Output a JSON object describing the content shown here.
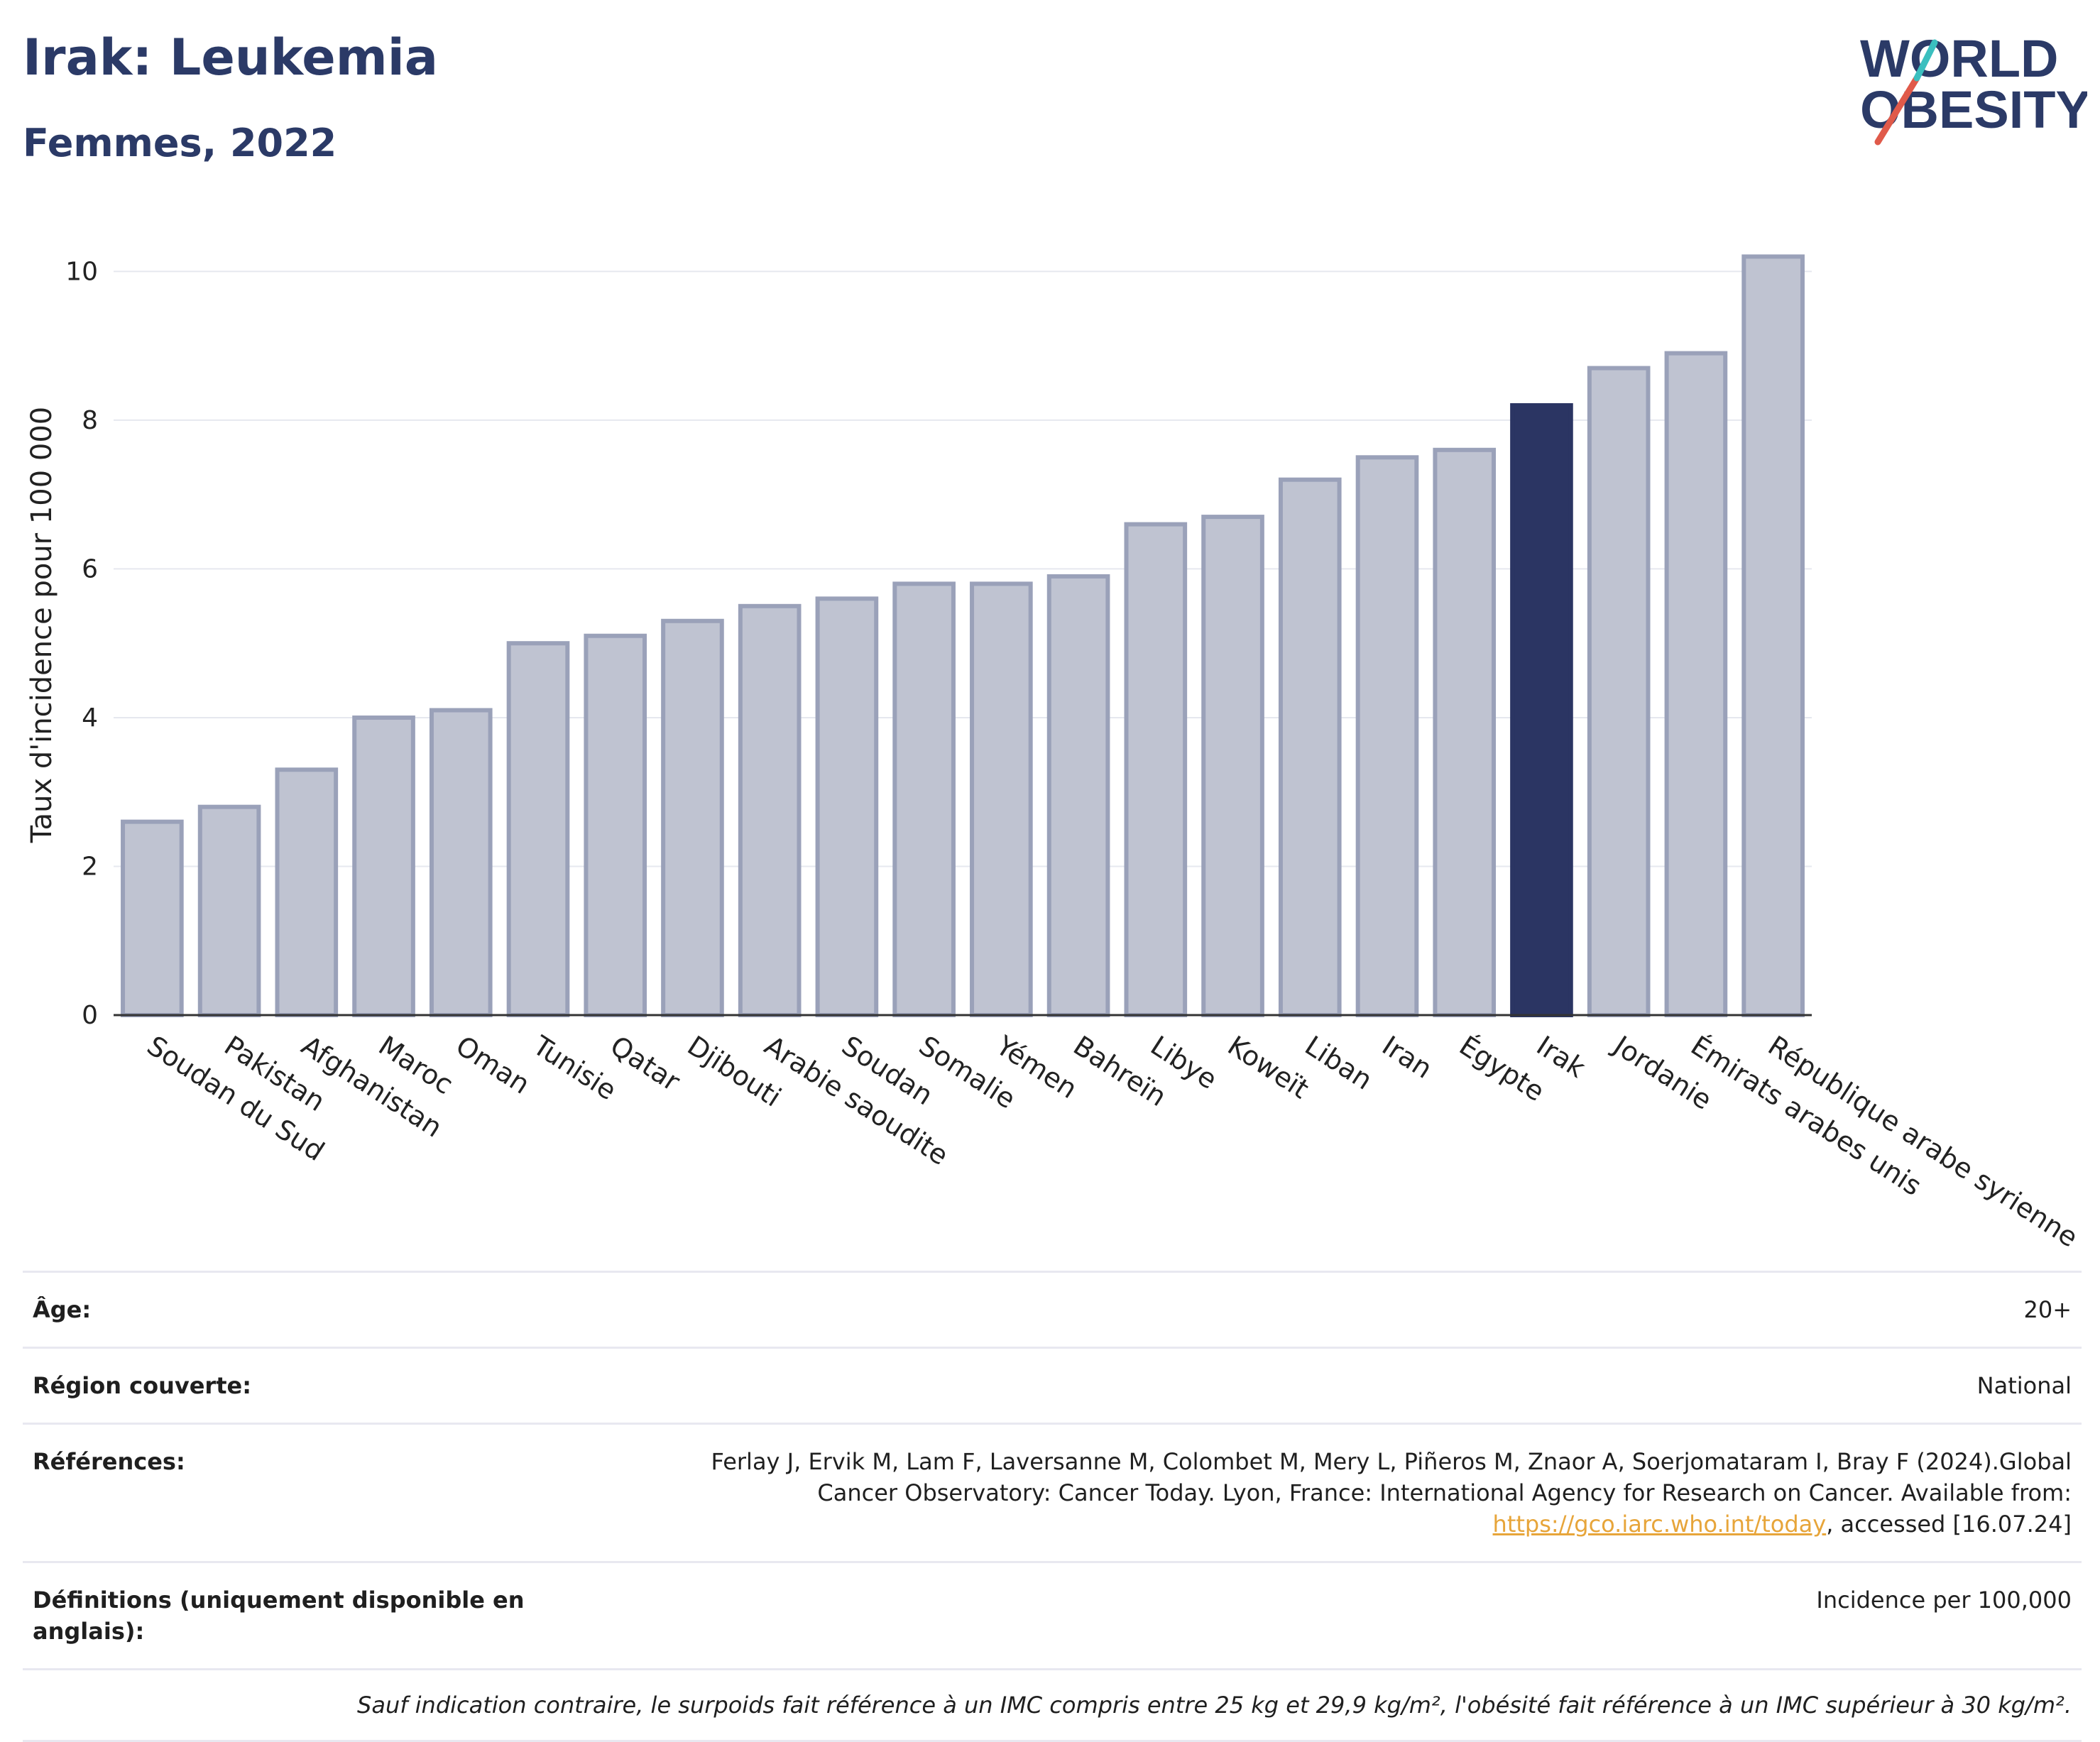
{
  "header": {
    "title": "Irak: Leukemia",
    "subtitle": "Femmes, 2022"
  },
  "logo": {
    "line1": "WORLD",
    "line2": "OBESITY",
    "colors": {
      "text": "#2b3a67",
      "slash_red": "#e05a4a",
      "slash_teal": "#3bbfbf"
    }
  },
  "colors": {
    "bar_default": "#bfc3d1",
    "bar_default_stroke": "#9aa1b9",
    "bar_highlight": "#2b3563",
    "grid": "#e6e8ef",
    "axis": "#333333",
    "link": "#e7a53a"
  },
  "chart_data": {
    "type": "bar",
    "ylabel": "Taux d'incidence pour 100 000",
    "xlabel": "",
    "ylim": [
      0,
      10.5
    ],
    "yticks": [
      0,
      2,
      4,
      6,
      8,
      10
    ],
    "grid": true,
    "highlight": "Irak",
    "categories": [
      "Soudan du Sud",
      "Pakistan",
      "Afghanistan",
      "Maroc",
      "Oman",
      "Tunisie",
      "Qatar",
      "Djibouti",
      "Arabie saoudite",
      "Soudan",
      "Somalie",
      "Yémen",
      "Bahreïn",
      "Libye",
      "Koweït",
      "Liban",
      "Iran",
      "Égypte",
      "Irak",
      "Jordanie",
      "Émirats arabes unis",
      "République arabe syrienne"
    ],
    "values": [
      2.6,
      2.8,
      3.3,
      4.0,
      4.1,
      5.0,
      5.1,
      5.3,
      5.5,
      5.6,
      5.8,
      5.8,
      5.9,
      6.6,
      6.7,
      7.2,
      7.5,
      7.6,
      8.2,
      8.7,
      8.9,
      10.2
    ]
  },
  "meta": {
    "age_label": "Âge:",
    "age_value": "20+",
    "region_label": "Région couverte:",
    "region_value": "National",
    "refs_label": "Références:",
    "refs_text": "Ferlay J, Ervik M, Lam F, Laversanne M, Colombet M, Mery L, Piñeros M, Znaor A, Soerjomataram I, Bray F (2024).Global Cancer Observatory: Cancer Today. Lyon, France: International Agency for Research on Cancer. Available from:",
    "refs_link": "https://gco.iarc.who.int/today",
    "refs_tail": ", accessed [16.07.24]",
    "defs_label": "Définitions (uniquement disponible en anglais):",
    "defs_value": "Incidence per 100,000",
    "note": "Sauf indication contraire, le surpoids fait référence à un IMC compris entre 25 kg et 29,9 kg/m², l'obésité fait référence à un IMC supérieur à 30 kg/m²."
  }
}
